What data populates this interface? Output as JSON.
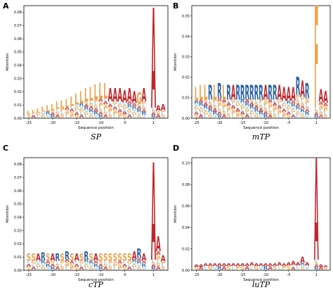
{
  "colors": {
    "A": "#c0272d",
    "R": "#2b63a6",
    "G": "#f0a048",
    "S": "#f0a048",
    "F": "#f0a048",
    "L": "#f0a048",
    "Y": "#9ad4ea",
    "V": "#9ad4ea",
    "C": "#9ad4ea",
    "bg_low": "#9ad4ea"
  },
  "chart_data": [
    {
      "panel_label": "A",
      "title": "SP",
      "type": "sequence-logo",
      "xlabel": "Sequence position",
      "ylabel": "Attention",
      "xlim": [
        -26,
        4
      ],
      "ylim": [
        0,
        0.085
      ],
      "xticks": [
        -25,
        -20,
        -15,
        -10,
        -5,
        1
      ],
      "yticks": [
        "0.00",
        "0.01",
        "0.02",
        "0.03",
        "0.04",
        "0.05",
        "0.06",
        "0.07",
        "0.08"
      ],
      "yticks_values": [
        0,
        0.01,
        0.02,
        0.03,
        0.04,
        0.05,
        0.06,
        0.07,
        0.08
      ],
      "top_letters": [
        {
          "pos": -25,
          "letter": "L",
          "height": 0.005
        },
        {
          "pos": -24,
          "letter": "L",
          "height": 0.006
        },
        {
          "pos": -23,
          "letter": "L",
          "height": 0.007
        },
        {
          "pos": -22,
          "letter": "L",
          "height": 0.008
        },
        {
          "pos": -21,
          "letter": "L",
          "height": 0.009
        },
        {
          "pos": -20,
          "letter": "L",
          "height": 0.01
        },
        {
          "pos": -19,
          "letter": "L",
          "height": 0.012
        },
        {
          "pos": -18,
          "letter": "L",
          "height": 0.013
        },
        {
          "pos": -17,
          "letter": "L",
          "height": 0.014
        },
        {
          "pos": -16,
          "letter": "L",
          "height": 0.016
        },
        {
          "pos": -15,
          "letter": "L",
          "height": 0.018
        },
        {
          "pos": -14,
          "letter": "L",
          "height": 0.02
        },
        {
          "pos": -13,
          "letter": "L",
          "height": 0.022
        },
        {
          "pos": -12,
          "letter": "L",
          "height": 0.023
        },
        {
          "pos": -11,
          "letter": "L",
          "height": 0.025
        },
        {
          "pos": -10,
          "letter": "L",
          "height": 0.026
        },
        {
          "pos": -9,
          "letter": "L",
          "height": 0.026
        },
        {
          "pos": -8,
          "letter": "A",
          "height": 0.022
        },
        {
          "pos": -7,
          "letter": "A",
          "height": 0.022
        },
        {
          "pos": -6,
          "letter": "A",
          "height": 0.022
        },
        {
          "pos": -5,
          "letter": "A",
          "height": 0.021
        },
        {
          "pos": -4,
          "letter": "A",
          "height": 0.022
        },
        {
          "pos": -3,
          "letter": "A",
          "height": 0.02
        },
        {
          "pos": -2,
          "letter": "G",
          "height": 0.019
        },
        {
          "pos": -1,
          "letter": "A",
          "height": 0.022
        },
        {
          "pos": 1,
          "letter": "A",
          "height": 0.083
        },
        {
          "pos": 2,
          "letter": "A",
          "height": 0.009
        },
        {
          "pos": 3,
          "letter": "A",
          "height": 0.01
        }
      ]
    },
    {
      "panel_label": "B",
      "title": "mTP",
      "type": "sequence-logo",
      "xlabel": "Sequence position",
      "ylabel": "Attention",
      "xlim": [
        -26,
        4
      ],
      "ylim": [
        0,
        0.055
      ],
      "xticks": [
        -25,
        -20,
        -15,
        -10,
        -5,
        1
      ],
      "yticks": [
        "0.00",
        "0.01",
        "0.02",
        "0.03",
        "0.04",
        "0.05"
      ],
      "yticks_values": [
        0,
        0.01,
        0.02,
        0.03,
        0.04,
        0.05
      ],
      "top_letters": [
        {
          "pos": -25,
          "letter": "L",
          "height": 0.015
        },
        {
          "pos": -24,
          "letter": "L",
          "height": 0.016
        },
        {
          "pos": -23,
          "letter": "L",
          "height": 0.016
        },
        {
          "pos": -22,
          "letter": "R",
          "height": 0.016
        },
        {
          "pos": -21,
          "letter": "L",
          "height": 0.016
        },
        {
          "pos": -20,
          "letter": "R",
          "height": 0.017
        },
        {
          "pos": -19,
          "letter": "L",
          "height": 0.016
        },
        {
          "pos": -18,
          "letter": "R",
          "height": 0.016
        },
        {
          "pos": -17,
          "letter": "A",
          "height": 0.016
        },
        {
          "pos": -16,
          "letter": "R",
          "height": 0.016
        },
        {
          "pos": -15,
          "letter": "R",
          "height": 0.016
        },
        {
          "pos": -14,
          "letter": "R",
          "height": 0.016
        },
        {
          "pos": -13,
          "letter": "R",
          "height": 0.016
        },
        {
          "pos": -12,
          "letter": "R",
          "height": 0.016
        },
        {
          "pos": -11,
          "letter": "R",
          "height": 0.016
        },
        {
          "pos": -10,
          "letter": "A",
          "height": 0.016
        },
        {
          "pos": -9,
          "letter": "R",
          "height": 0.016
        },
        {
          "pos": -8,
          "letter": "R",
          "height": 0.016
        },
        {
          "pos": -7,
          "letter": "A",
          "height": 0.016
        },
        {
          "pos": -6,
          "letter": "A",
          "height": 0.015
        },
        {
          "pos": -5,
          "letter": "A",
          "height": 0.015
        },
        {
          "pos": -4,
          "letter": "A",
          "height": 0.015
        },
        {
          "pos": -3,
          "letter": "R",
          "height": 0.02
        },
        {
          "pos": -2,
          "letter": "A",
          "height": 0.018
        },
        {
          "pos": -1,
          "letter": "R",
          "height": 0.017
        },
        {
          "pos": 1,
          "letter": "F",
          "height": 0.055
        },
        {
          "pos": 2,
          "letter": "A",
          "height": 0.014
        },
        {
          "pos": 3,
          "letter": "A",
          "height": 0.013
        }
      ]
    },
    {
      "panel_label": "C",
      "title": "cTP",
      "type": "sequence-logo",
      "xlabel": "Sequence position",
      "ylabel": "Attention",
      "xlim": [
        -26,
        4
      ],
      "ylim": [
        0,
        0.085
      ],
      "xticks": [
        -25,
        -20,
        -15,
        -10,
        -5,
        1
      ],
      "yticks": [
        "0.00",
        "0.01",
        "0.02",
        "0.03",
        "0.04",
        "0.05",
        "0.06",
        "0.07",
        "0.08"
      ],
      "yticks_values": [
        0,
        0.01,
        0.02,
        0.03,
        0.04,
        0.05,
        0.06,
        0.07,
        0.08
      ],
      "top_letters": [
        {
          "pos": -25,
          "letter": "S",
          "height": 0.012
        },
        {
          "pos": -24,
          "letter": "S",
          "height": 0.012
        },
        {
          "pos": -23,
          "letter": "A",
          "height": 0.012
        },
        {
          "pos": -22,
          "letter": "R",
          "height": 0.013
        },
        {
          "pos": -21,
          "letter": "S",
          "height": 0.012
        },
        {
          "pos": -20,
          "letter": "A",
          "height": 0.012
        },
        {
          "pos": -19,
          "letter": "R",
          "height": 0.012
        },
        {
          "pos": -18,
          "letter": "S",
          "height": 0.012
        },
        {
          "pos": -17,
          "letter": "R",
          "height": 0.014
        },
        {
          "pos": -16,
          "letter": "S",
          "height": 0.012
        },
        {
          "pos": -15,
          "letter": "A",
          "height": 0.012
        },
        {
          "pos": -14,
          "letter": "S",
          "height": 0.012
        },
        {
          "pos": -13,
          "letter": "R",
          "height": 0.014
        },
        {
          "pos": -12,
          "letter": "S",
          "height": 0.012
        },
        {
          "pos": -11,
          "letter": "A",
          "height": 0.012
        },
        {
          "pos": -10,
          "letter": "S",
          "height": 0.012
        },
        {
          "pos": -9,
          "letter": "S",
          "height": 0.012
        },
        {
          "pos": -8,
          "letter": "S",
          "height": 0.012
        },
        {
          "pos": -7,
          "letter": "S",
          "height": 0.012
        },
        {
          "pos": -6,
          "letter": "S",
          "height": 0.012
        },
        {
          "pos": -5,
          "letter": "S",
          "height": 0.012
        },
        {
          "pos": -4,
          "letter": "S",
          "height": 0.012
        },
        {
          "pos": -3,
          "letter": "A",
          "height": 0.014
        },
        {
          "pos": -2,
          "letter": "R",
          "height": 0.016
        },
        {
          "pos": -1,
          "letter": "A",
          "height": 0.012
        },
        {
          "pos": 1,
          "letter": "A",
          "height": 0.081
        },
        {
          "pos": 2,
          "letter": "A",
          "height": 0.025
        },
        {
          "pos": 3,
          "letter": "A",
          "height": 0.011
        }
      ]
    },
    {
      "panel_label": "D",
      "title": "luTP",
      "type": "sequence-logo",
      "xlabel": "Sequence position",
      "ylabel": "Attention",
      "xlim": [
        -26,
        4
      ],
      "ylim": [
        0,
        0.105
      ],
      "xticks": [
        -25,
        -20,
        -15,
        -10,
        -5,
        1
      ],
      "yticks": [
        "0.00",
        "0.02",
        "0.04",
        "0.06",
        "0.08",
        "0.10"
      ],
      "yticks_values": [
        0,
        0.02,
        0.04,
        0.06,
        0.08,
        0.1
      ],
      "top_letters": [
        {
          "pos": -25,
          "letter": "A",
          "height": 0.005
        },
        {
          "pos": -24,
          "letter": "A",
          "height": 0.005
        },
        {
          "pos": -23,
          "letter": "A",
          "height": 0.006
        },
        {
          "pos": -22,
          "letter": "A",
          "height": 0.006
        },
        {
          "pos": -21,
          "letter": "A",
          "height": 0.006
        },
        {
          "pos": -20,
          "letter": "A",
          "height": 0.006
        },
        {
          "pos": -19,
          "letter": "A",
          "height": 0.006
        },
        {
          "pos": -18,
          "letter": "A",
          "height": 0.006
        },
        {
          "pos": -17,
          "letter": "A",
          "height": 0.006
        },
        {
          "pos": -16,
          "letter": "A",
          "height": 0.006
        },
        {
          "pos": -15,
          "letter": "A",
          "height": 0.006
        },
        {
          "pos": -14,
          "letter": "A",
          "height": 0.006
        },
        {
          "pos": -13,
          "letter": "A",
          "height": 0.007
        },
        {
          "pos": -12,
          "letter": "A",
          "height": 0.006
        },
        {
          "pos": -11,
          "letter": "A",
          "height": 0.006
        },
        {
          "pos": -10,
          "letter": "A",
          "height": 0.006
        },
        {
          "pos": -9,
          "letter": "A",
          "height": 0.006
        },
        {
          "pos": -8,
          "letter": "A",
          "height": 0.006
        },
        {
          "pos": -7,
          "letter": "A",
          "height": 0.007
        },
        {
          "pos": -6,
          "letter": "A",
          "height": 0.006
        },
        {
          "pos": -5,
          "letter": "A",
          "height": 0.007
        },
        {
          "pos": -4,
          "letter": "A",
          "height": 0.008
        },
        {
          "pos": -3,
          "letter": "A",
          "height": 0.007
        },
        {
          "pos": -2,
          "letter": "A",
          "height": 0.012
        },
        {
          "pos": -1,
          "letter": "A",
          "height": 0.007
        },
        {
          "pos": 1,
          "letter": "A",
          "height": 0.104
        },
        {
          "pos": 2,
          "letter": "A",
          "height": 0.005
        },
        {
          "pos": 3,
          "letter": "A",
          "height": 0.004
        }
      ]
    }
  ]
}
